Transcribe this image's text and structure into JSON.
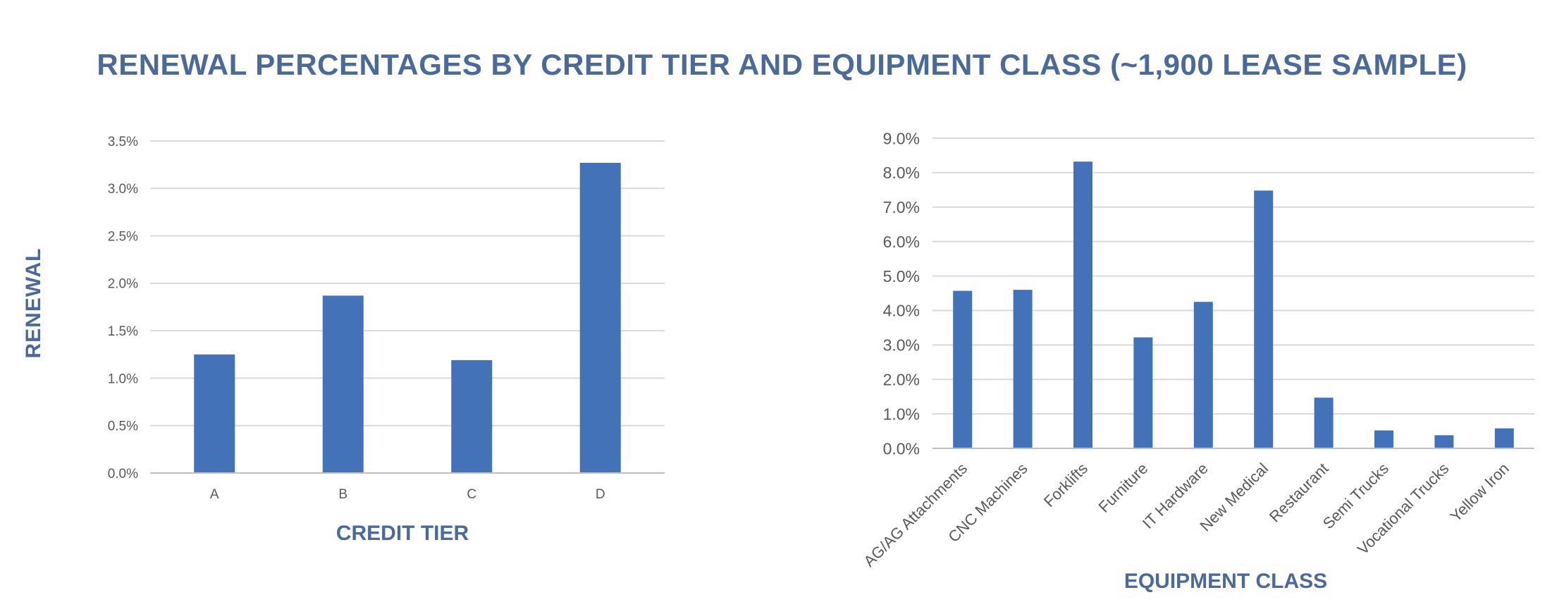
{
  "title": "RENEWAL PERCENTAGES BY CREDIT TIER AND EQUIPMENT CLASS (~1,900 LEASE SAMPLE)",
  "shared_ylabel": "RENEWAL",
  "bar_color": "#4472b8",
  "grid_color": "#d9d9d9",
  "chart_data": [
    {
      "type": "bar",
      "categories": [
        "A",
        "B",
        "C",
        "D"
      ],
      "values": [
        1.25,
        1.87,
        1.19,
        3.27
      ],
      "xlabel": "CREDIT TIER",
      "ylabel": "",
      "ylim": [
        0,
        3.5
      ],
      "yticks": [
        "0.0%",
        "0.5%",
        "1.0%",
        "1.5%",
        "2.0%",
        "2.5%",
        "3.0%",
        "3.5%"
      ],
      "grid": true
    },
    {
      "type": "bar",
      "categories": [
        "AG/AG Attachments",
        "CNC Machines",
        "Forklifts",
        "Furniture",
        "IT Hardware",
        "New Medical",
        "Restaurant",
        "Semi Trucks",
        "Vocational Trucks",
        "Yellow Iron"
      ],
      "values": [
        4.57,
        4.6,
        8.32,
        3.22,
        4.25,
        7.48,
        1.47,
        0.52,
        0.38,
        0.58
      ],
      "xlabel": "EQUIPMENT CLASS",
      "ylabel": "",
      "ylim": [
        0,
        9.0
      ],
      "yticks": [
        "0.0%",
        "1.0%",
        "2.0%",
        "3.0%",
        "4.0%",
        "5.0%",
        "6.0%",
        "7.0%",
        "8.0%",
        "9.0%"
      ],
      "grid": true
    }
  ]
}
